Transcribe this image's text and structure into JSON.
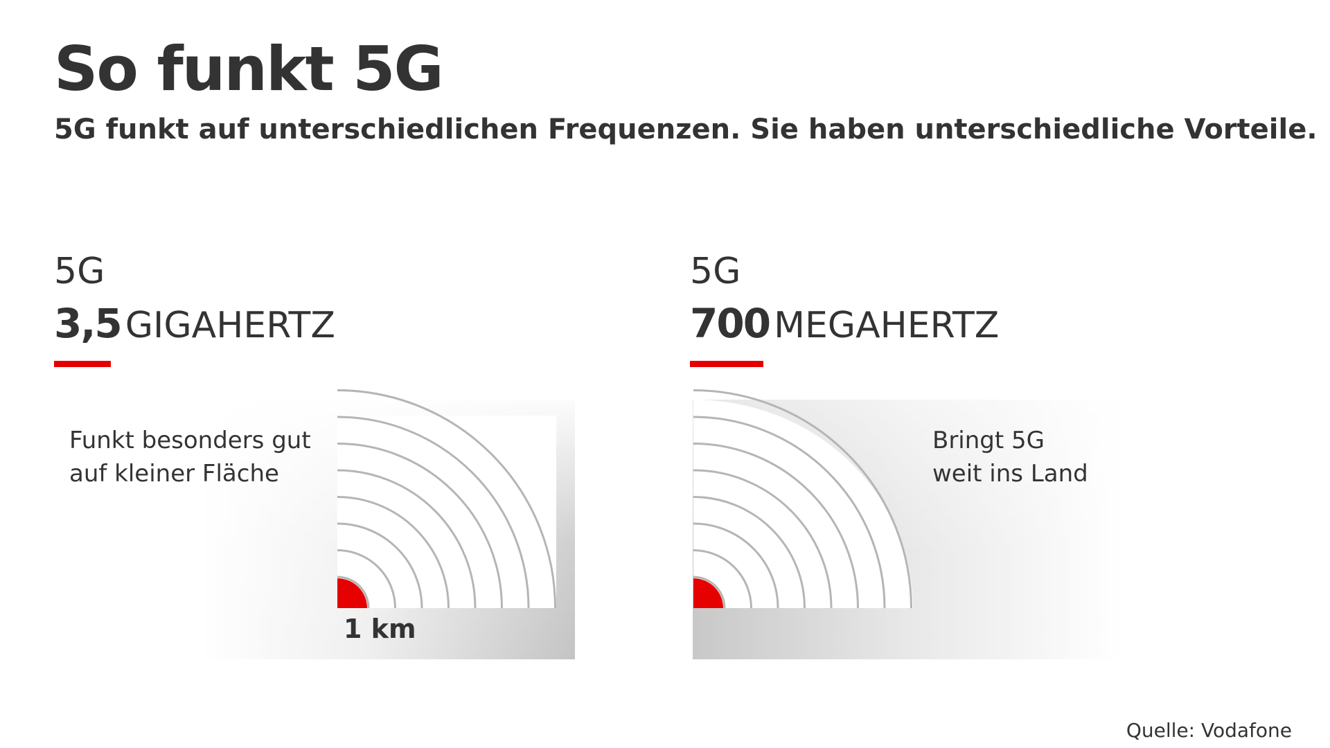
{
  "title": "So funkt 5G",
  "subtitle": "5G funkt auf unterschiedlichen Frequenzen. Sie haben unterschiedliche Vorteile.",
  "panels": [
    {
      "band": "5G",
      "freq_value": "3,5",
      "freq_unit": "GIGAHERTZ",
      "description": [
        "Funkt besonders gut",
        "auf kleiner Fläche"
      ],
      "range_label": "1 km",
      "ring_count": 8
    },
    {
      "band": "5G",
      "freq_value": "700",
      "freq_unit": "MEGAHERTZ",
      "description": [
        "Bringt 5G",
        "weit ins Land"
      ],
      "ring_count": 8
    }
  ],
  "source": "Quelle: Vodafone",
  "colors": {
    "accent": "#e60000",
    "text": "#333333",
    "ring": "#b5b5b5",
    "panel_gray": "#c4c4c4"
  }
}
